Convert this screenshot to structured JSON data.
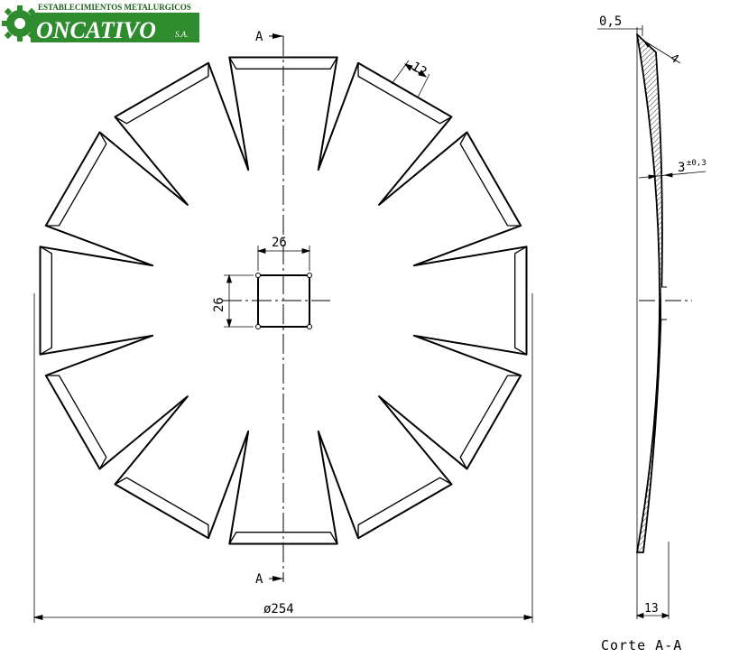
{
  "logo": {
    "top_text": "ESTABLECIMIENTOS METALURGICOS",
    "brand": "ONCATIVO",
    "suffix": "S.A.",
    "colors": {
      "green": "#2e8b2e",
      "dark_green": "#1a5e1a",
      "text": "#ffffff"
    },
    "icon": "gear-icon"
  },
  "front_view": {
    "section_mark_top": "A",
    "section_mark_bottom": "A",
    "hole_width_label": "26",
    "hole_height_label": "26",
    "tooth_width_label": "12",
    "diameter_label": "ø254"
  },
  "section_view": {
    "offset_label": "0,5",
    "edge_label": "4",
    "thickness_label": "3",
    "thickness_tolerance": "±0,3",
    "depth_label": "13",
    "title": "Corte A-A"
  }
}
